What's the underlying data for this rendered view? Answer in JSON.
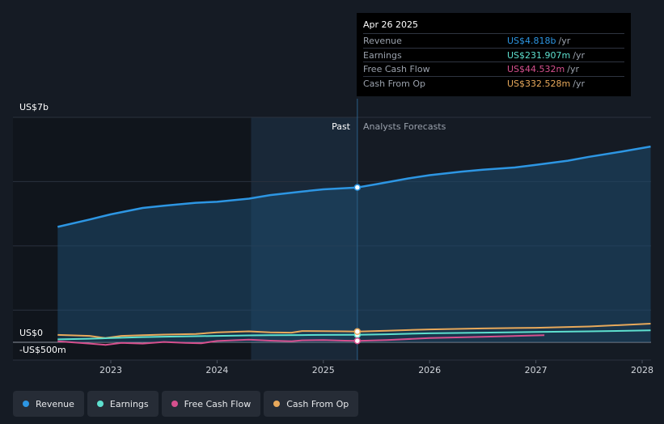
{
  "tooltip": {
    "date": "Apr 26 2025",
    "rows": [
      {
        "label": "Revenue",
        "value": "US$4.818b",
        "unit": "/yr",
        "color": "#2d96e3"
      },
      {
        "label": "Earnings",
        "value": "US$231.907m",
        "unit": "/yr",
        "color": "#5ee0cf"
      },
      {
        "label": "Free Cash Flow",
        "value": "US$44.532m",
        "unit": "/yr",
        "color": "#d6508e"
      },
      {
        "label": "Cash From Op",
        "value": "US$332.528m",
        "unit": "/yr",
        "color": "#e8a95b"
      }
    ]
  },
  "legend": [
    {
      "label": "Revenue",
      "color": "#2d96e3"
    },
    {
      "label": "Earnings",
      "color": "#5ee0cf"
    },
    {
      "label": "Free Cash Flow",
      "color": "#d6508e"
    },
    {
      "label": "Cash From Op",
      "color": "#e8a95b"
    }
  ],
  "chart_data": {
    "type": "line",
    "y_axis_labels": [
      "US$7b",
      "US$0",
      "-US$500m"
    ],
    "ylim": [
      -500,
      7000
    ],
    "x_ticks": [
      2023,
      2024,
      2025,
      2026,
      2027,
      2028
    ],
    "xlim": [
      2022.4,
      2028.1
    ],
    "past_label": "Past",
    "forecast_label": "Analysts Forecasts",
    "divider_x": 2025.32,
    "shade_start_x": 2024.32,
    "series": [
      {
        "name": "Revenue",
        "color": "#2d96e3",
        "points": [
          [
            2022.5,
            3590
          ],
          [
            2022.8,
            3820
          ],
          [
            2023.0,
            3980
          ],
          [
            2023.3,
            4180
          ],
          [
            2023.5,
            4250
          ],
          [
            2023.8,
            4340
          ],
          [
            2024.0,
            4370
          ],
          [
            2024.3,
            4470
          ],
          [
            2024.5,
            4580
          ],
          [
            2024.8,
            4690
          ],
          [
            2025.0,
            4760
          ],
          [
            2025.32,
            4818
          ],
          [
            2025.5,
            4920
          ],
          [
            2025.8,
            5100
          ],
          [
            2026.0,
            5200
          ],
          [
            2026.3,
            5310
          ],
          [
            2026.5,
            5370
          ],
          [
            2026.8,
            5440
          ],
          [
            2027.0,
            5520
          ],
          [
            2027.3,
            5650
          ],
          [
            2027.5,
            5770
          ],
          [
            2027.8,
            5930
          ],
          [
            2028.08,
            6090
          ]
        ]
      },
      {
        "name": "Earnings",
        "color": "#5ee0cf",
        "points": [
          [
            2022.5,
            90
          ],
          [
            2022.8,
            110
          ],
          [
            2023.0,
            130
          ],
          [
            2023.3,
            160
          ],
          [
            2023.5,
            175
          ],
          [
            2023.8,
            190
          ],
          [
            2024.0,
            200
          ],
          [
            2024.3,
            215
          ],
          [
            2024.5,
            220
          ],
          [
            2024.8,
            225
          ],
          [
            2025.0,
            228
          ],
          [
            2025.32,
            231.9
          ],
          [
            2025.6,
            250
          ],
          [
            2026.0,
            280
          ],
          [
            2026.5,
            300
          ],
          [
            2027.0,
            320
          ],
          [
            2027.5,
            340
          ],
          [
            2028.08,
            370
          ]
        ]
      },
      {
        "name": "Free Cash Flow",
        "color": "#d6508e",
        "points": [
          [
            2022.5,
            30
          ],
          [
            2022.8,
            -40
          ],
          [
            2022.95,
            -80
          ],
          [
            2023.1,
            -20
          ],
          [
            2023.3,
            -40
          ],
          [
            2023.5,
            10
          ],
          [
            2023.7,
            -20
          ],
          [
            2023.85,
            -30
          ],
          [
            2024.0,
            40
          ],
          [
            2024.3,
            80
          ],
          [
            2024.5,
            50
          ],
          [
            2024.7,
            30
          ],
          [
            2024.8,
            60
          ],
          [
            2025.0,
            70
          ],
          [
            2025.2,
            50
          ],
          [
            2025.32,
            44.5
          ],
          [
            2025.6,
            70
          ],
          [
            2026.0,
            130
          ],
          [
            2026.5,
            170
          ],
          [
            2027.08,
            220
          ]
        ]
      },
      {
        "name": "Cash From Op",
        "color": "#e8a95b",
        "points": [
          [
            2022.5,
            230
          ],
          [
            2022.8,
            200
          ],
          [
            2022.95,
            130
          ],
          [
            2023.1,
            200
          ],
          [
            2023.3,
            220
          ],
          [
            2023.5,
            240
          ],
          [
            2023.8,
            260
          ],
          [
            2024.0,
            310
          ],
          [
            2024.3,
            340
          ],
          [
            2024.5,
            310
          ],
          [
            2024.7,
            300
          ],
          [
            2024.8,
            350
          ],
          [
            2025.0,
            345
          ],
          [
            2025.2,
            340
          ],
          [
            2025.32,
            332.5
          ],
          [
            2025.6,
            360
          ],
          [
            2026.0,
            400
          ],
          [
            2026.5,
            430
          ],
          [
            2027.0,
            450
          ],
          [
            2027.5,
            490
          ],
          [
            2028.08,
            580
          ]
        ]
      }
    ]
  }
}
